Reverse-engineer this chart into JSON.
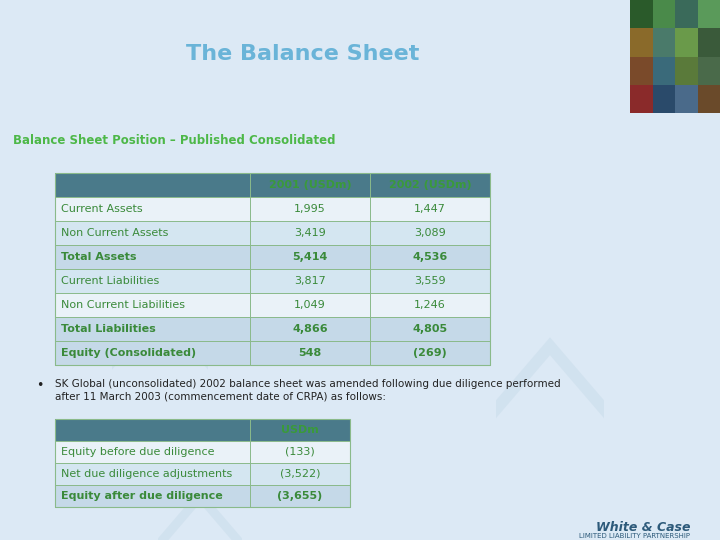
{
  "title": "The Balance Sheet",
  "subtitle": "Balance Sheet Position – Published Consolidated",
  "header_bg": "#3a5f72",
  "header_title_color": "#6ab4d8",
  "subtitle_color": "#4db848",
  "red_bar_color": "#7a1a1a",
  "body_bg": "#dce9f5",
  "right_panel_bg": "#1a3040",
  "table1": {
    "headers": [
      "",
      "2001 (USDm)",
      "2002 (USDm)"
    ],
    "rows": [
      [
        "Current Assets",
        "1,995",
        "1,447"
      ],
      [
        "Non Current Assets",
        "3,419",
        "3,089"
      ],
      [
        "Total Assets",
        "5,414",
        "4,536"
      ],
      [
        "Current Liabilities",
        "3,817",
        "3,559"
      ],
      [
        "Non Current Liabilities",
        "1,049",
        "1,246"
      ],
      [
        "Total Liabilities",
        "4,866",
        "4,805"
      ],
      [
        "Equity (Consolidated)",
        "548",
        "(269)"
      ]
    ],
    "bold_rows": [
      2,
      5,
      6
    ],
    "header_bg": "#4a7a8a",
    "row_bg_light": "#eaf2f8",
    "row_bg_mid": "#d4e6f1",
    "bold_row_bg": "#c5d9e8",
    "text_color": "#3a8a3a",
    "header_text_color": "#3a9a3a",
    "border_color": "#8aba8a"
  },
  "bullet_text_line1": "SK Global (unconsolidated) 2002 balance sheet was amended following due diligence performed",
  "bullet_text_line2": "after 11 March 2003 (commencement date of CRPA) as follows:",
  "table2": {
    "headers": [
      "",
      "USDm"
    ],
    "rows": [
      [
        "Equity before due diligence",
        "(133)"
      ],
      [
        "Net due diligence adjustments",
        "(3,522)"
      ],
      [
        "Equity after due diligence",
        "(3,655)"
      ]
    ],
    "bold_rows": [
      2
    ],
    "header_bg": "#4a7a8a",
    "row_bg_light": "#eaf2f8",
    "row_bg_mid": "#d4e6f1",
    "bold_row_bg": "#c5d9e8",
    "text_color": "#3a8a3a",
    "header_text_color": "#3a9a3a",
    "border_color": "#8aba8a"
  },
  "footer_text": "White & Case",
  "footer_sub": "LIMITED LIABILITY PARTNERSHIP",
  "footer_color": "#2d5a7a",
  "watermark_color": "#c8dcea",
  "watermark_alpha": 0.5
}
